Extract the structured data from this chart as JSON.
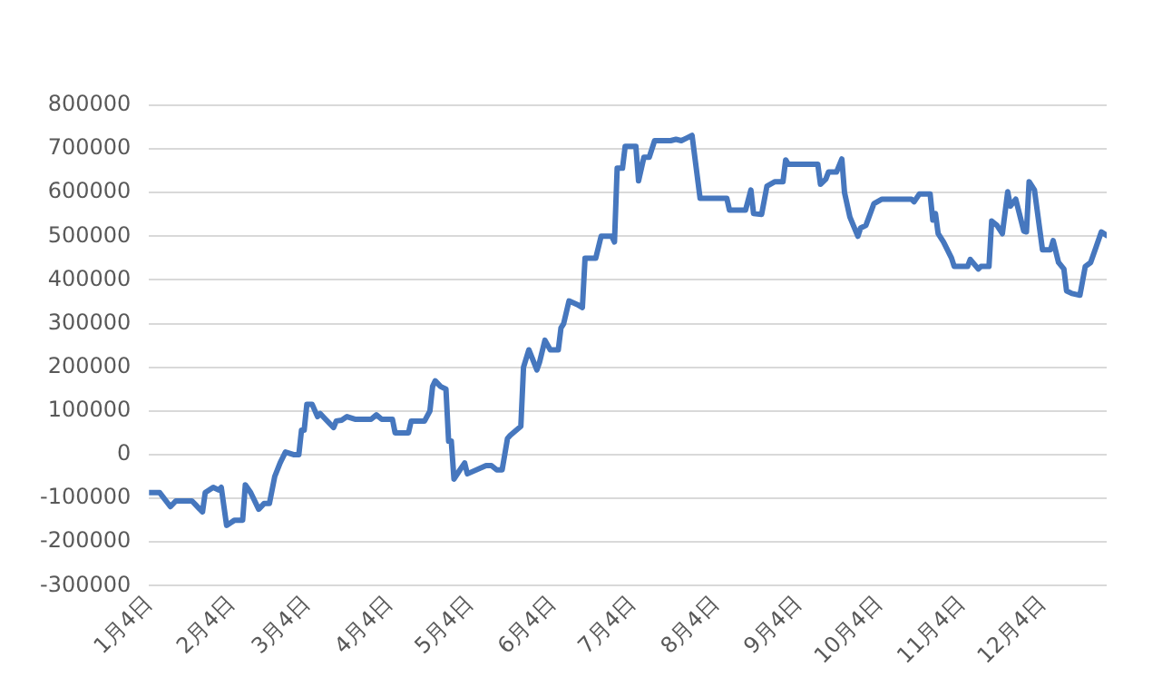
{
  "chart_data": {
    "type": "line",
    "xlim": [
      "--01-04",
      "--12-28"
    ],
    "xticks": [
      {
        "value": "--01-04",
        "label": "1月4日"
      },
      {
        "value": "--02-04",
        "label": "2月4日"
      },
      {
        "value": "--03-04",
        "label": "3月4日"
      },
      {
        "value": "--04-04",
        "label": "4月4日"
      },
      {
        "value": "--05-04",
        "label": "5月4日"
      },
      {
        "value": "--06-04",
        "label": "6月4日"
      },
      {
        "value": "--07-04",
        "label": "7月4日"
      },
      {
        "value": "--08-04",
        "label": "8月4日"
      },
      {
        "value": "--09-04",
        "label": "9月4日"
      },
      {
        "value": "--10-04",
        "label": "10月4日"
      },
      {
        "value": "--11-04",
        "label": "11月4日"
      },
      {
        "value": "--12-04",
        "label": "12月4日"
      }
    ],
    "ylim": [
      -300000,
      800000
    ],
    "yticks": [
      -300000,
      -200000,
      -100000,
      0,
      100000,
      200000,
      300000,
      400000,
      500000,
      600000,
      700000,
      800000
    ],
    "grid": "y",
    "legend": false,
    "marker": "none",
    "line_style": "solid",
    "series": [
      {
        "color": "#4677be",
        "x": [
          "--01-04",
          "--01-08",
          "--01-12",
          "--01-14",
          "--01-20",
          "--01-21",
          "--01-23",
          "--01-24",
          "--01-25",
          "--01-28",
          "--01-30",
          "--01-31",
          "--02-02",
          "--02-05",
          "--02-08",
          "--02-09",
          "--02-11",
          "--02-14",
          "--02-16",
          "--02-18",
          "--02-20",
          "--02-22",
          "--02-24",
          "--02-27",
          "--03-01",
          "--03-02",
          "--03-03",
          "--03-04",
          "--03-06",
          "--03-08",
          "--03-09",
          "--03-11",
          "--03-14",
          "--03-15",
          "--03-17",
          "--03-19",
          "--03-22",
          "--03-28",
          "--03-30",
          "--04-01",
          "--04-05",
          "--04-06",
          "--04-11",
          "--04-12",
          "--04-17",
          "--04-19",
          "--04-20",
          "--04-21",
          "--04-23",
          "--04-25",
          "--04-26",
          "--04-27",
          "--04-28",
          "--04-30",
          "--05-02",
          "--05-03",
          "--05-10",
          "--05-12",
          "--05-14",
          "--05-16",
          "--05-18",
          "--05-19",
          "--05-23",
          "--05-24",
          "--05-26",
          "--05-29",
          "--05-30",
          "--06-01",
          "--06-03",
          "--06-06",
          "--06-07",
          "--06-08",
          "--06-10",
          "--06-13",
          "--06-15",
          "--06-16",
          "--06-20",
          "--06-22",
          "--06-26",
          "--06-27",
          "--06-28",
          "--06-30",
          "--07-01",
          "--07-05",
          "--07-06",
          "--07-08",
          "--07-10",
          "--07-12",
          "--07-18",
          "--07-20",
          "--07-22",
          "--07-24",
          "--07-26",
          "--07-29",
          "--08-08",
          "--08-09",
          "--08-15",
          "--08-17",
          "--08-18",
          "--08-21",
          "--08-23",
          "--08-26",
          "--08-29",
          "--08-30",
          "--08-31",
          "--09-11",
          "--09-12",
          "--09-14",
          "--09-15",
          "--09-18",
          "--09-20",
          "--09-21",
          "--09-23",
          "--09-26",
          "--09-27",
          "--09-29",
          "--10-02",
          "--10-05",
          "--10-16",
          "--10-17",
          "--10-19",
          "--10-23",
          "--10-24",
          "--10-25",
          "--10-26",
          "--10-28",
          "--10-31",
          "--11-01",
          "--11-06",
          "--11-07",
          "--11-10",
          "--11-11",
          "--11-14",
          "--11-15",
          "--11-17",
          "--11-19",
          "--11-21",
          "--11-22",
          "--11-24",
          "--11-27",
          "--11-28",
          "--11-29",
          "--12-01",
          "--12-04",
          "--12-07",
          "--12-08",
          "--12-10",
          "--12-12",
          "--12-13",
          "--12-15",
          "--12-18",
          "--12-20",
          "--12-22",
          "--12-24",
          "--12-26",
          "--12-28"
        ],
        "values": [
          -87000,
          -87000,
          -119000,
          -106000,
          -106000,
          -112000,
          -125000,
          -131000,
          -87000,
          -75000,
          -81000,
          -75000,
          -162000,
          -150000,
          -150000,
          -69000,
          -87000,
          -125000,
          -112000,
          -112000,
          -50000,
          -19000,
          6000,
          0,
          0,
          56000,
          56000,
          115000,
          115000,
          87000,
          94000,
          81000,
          62000,
          77000,
          79000,
          87000,
          81000,
          81000,
          91000,
          81000,
          81000,
          50000,
          50000,
          77000,
          77000,
          100000,
          156000,
          169000,
          156000,
          150000,
          31000,
          31000,
          -56000,
          -37000,
          -19000,
          -44000,
          -25000,
          -25000,
          -35000,
          -35000,
          37000,
          44000,
          65000,
          200000,
          240000,
          194000,
          212000,
          262000,
          240000,
          240000,
          290000,
          300000,
          352000,
          344000,
          337000,
          450000,
          450000,
          500000,
          500000,
          487000,
          656000,
          656000,
          706000,
          706000,
          627000,
          681000,
          681000,
          719000,
          719000,
          722000,
          719000,
          725000,
          731000,
          587000,
          587000,
          560000,
          560000,
          606000,
          552000,
          550000,
          615000,
          625000,
          625000,
          675000,
          665000,
          665000,
          619000,
          631000,
          647000,
          647000,
          677000,
          600000,
          544000,
          500000,
          519000,
          525000,
          575000,
          585000,
          585000,
          579000,
          597000,
          597000,
          537000,
          552000,
          506000,
          487000,
          450000,
          431000,
          431000,
          447000,
          425000,
          431000,
          431000,
          535000,
          525000,
          506000,
          602000,
          569000,
          585000,
          512000,
          510000,
          625000,
          606000,
          469000,
          469000,
          490000,
          440000,
          425000,
          375000,
          369000,
          365000,
          431000,
          440000,
          475000,
          510000,
          502000
        ]
      }
    ]
  }
}
